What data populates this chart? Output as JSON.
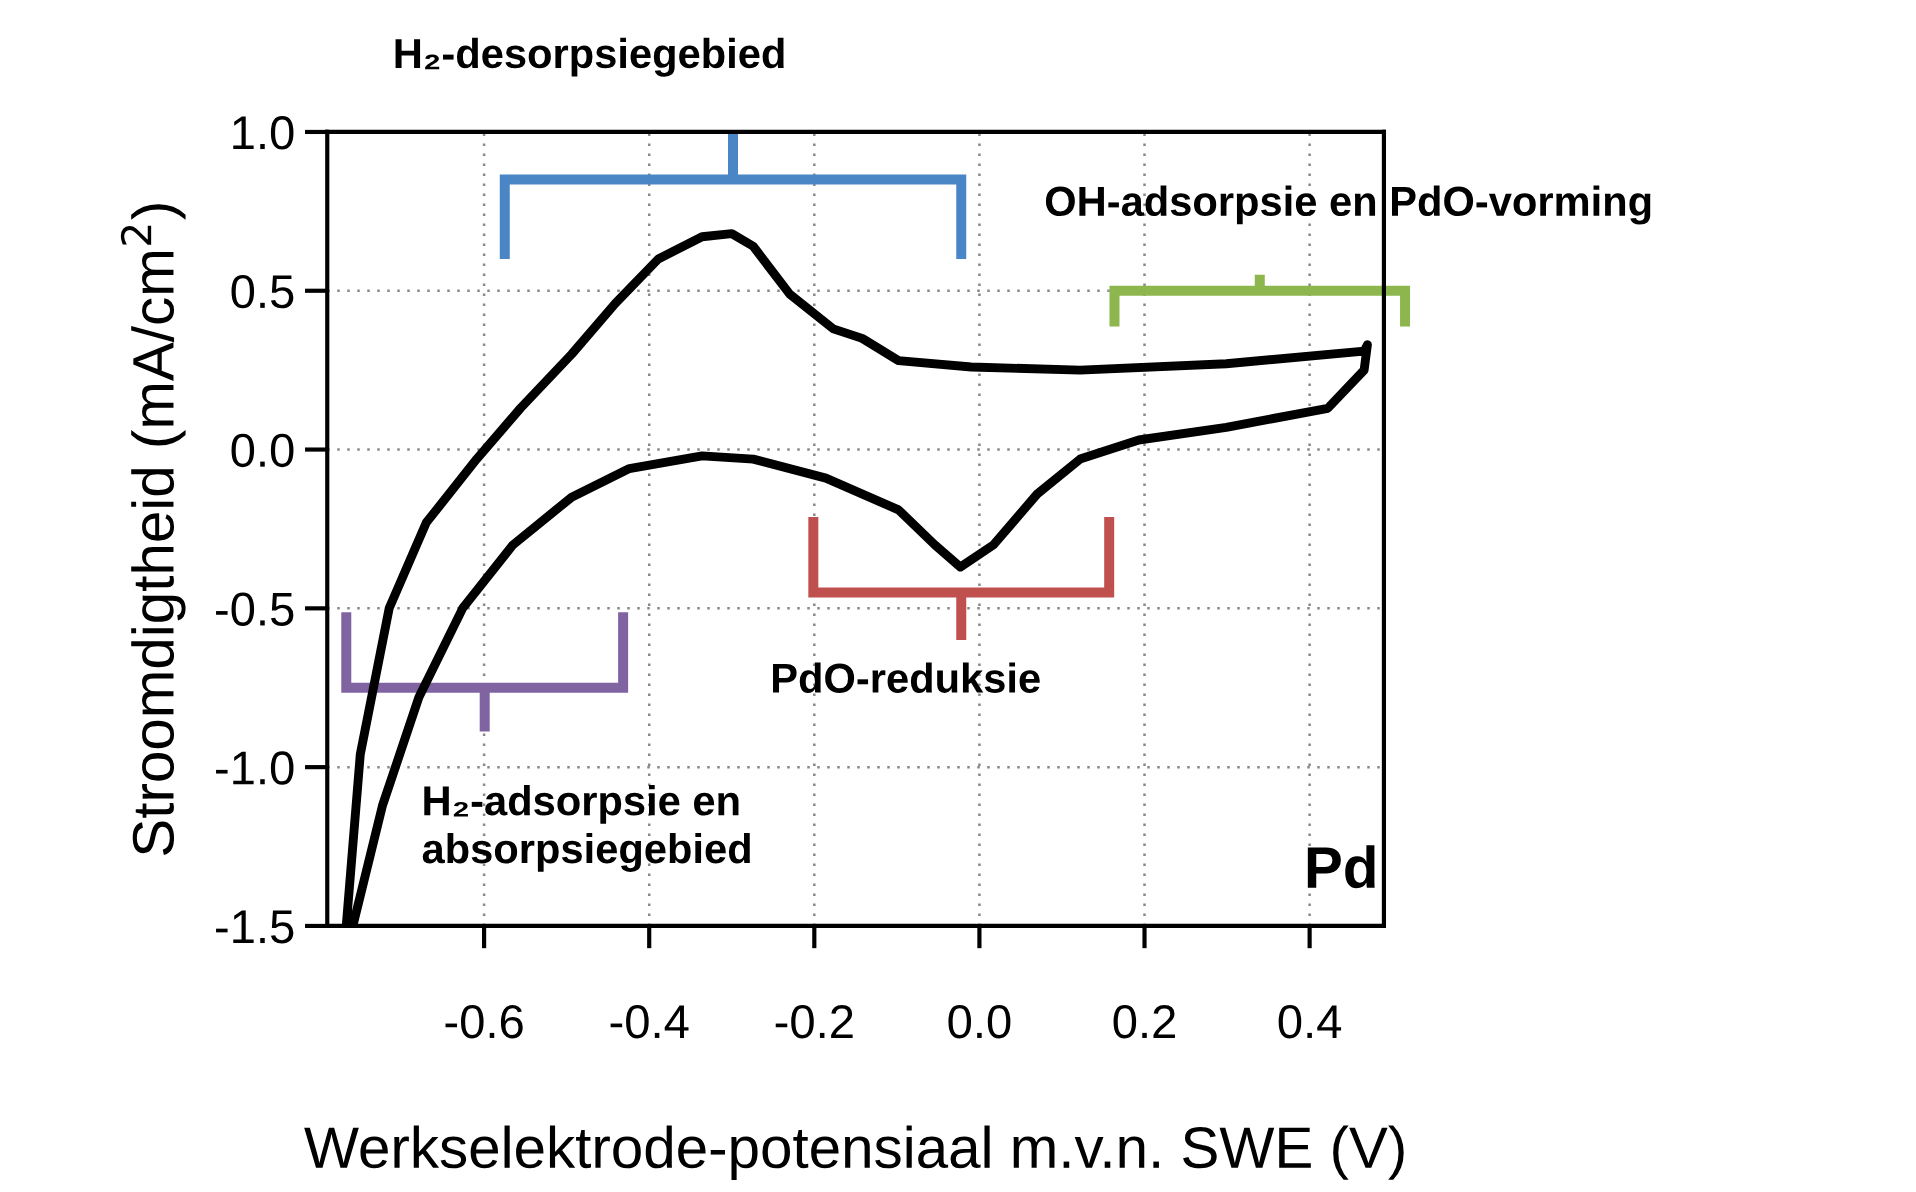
{
  "chart_data": {
    "type": "line",
    "xlabel": "Werkselektrode-potensiaal m.v.n. SWE (V)",
    "ylabel": "Stroomdigtheid (mA/cm$^{2}$)",
    "xlim": [
      -0.79,
      0.49
    ],
    "xticks": [
      {
        "value": -0.6,
        "label": "-0.6"
      },
      {
        "value": -0.4,
        "label": "-0.4"
      },
      {
        "value": -0.2,
        "label": "-0.2"
      },
      {
        "value": 0.0,
        "label": "0.0"
      },
      {
        "value": 0.2,
        "label": "0.2"
      },
      {
        "value": 0.4,
        "label": "0.4"
      }
    ],
    "ylim": [
      -1.5,
      1.0
    ],
    "yticks": [
      {
        "value": -1.5,
        "label": "-1.5"
      },
      {
        "value": -1.0,
        "label": "-1.0"
      },
      {
        "value": -0.5,
        "label": "-0.5"
      },
      {
        "value": 0.0,
        "label": "0.0"
      },
      {
        "value": 0.5,
        "label": "0.5"
      },
      {
        "value": 1.0,
        "label": "1.0"
      }
    ],
    "grid": true,
    "line_style": "solid",
    "series": [
      {
        "color": "#000000",
        "x": [
          -0.767,
          -0.75,
          -0.715,
          -0.67,
          -0.609,
          -0.556,
          -0.494,
          -0.441,
          -0.389,
          -0.336,
          -0.3,
          -0.274,
          -0.23,
          -0.177,
          -0.142,
          -0.098,
          -0.01,
          0.122,
          0.299,
          0.466,
          0.47,
          0.466,
          0.422,
          0.299,
          0.193,
          0.122,
          0.07,
          0.017,
          -0.023,
          -0.054,
          -0.098,
          -0.186,
          -0.274,
          -0.336,
          -0.424,
          -0.494,
          -0.565,
          -0.626,
          -0.679,
          -0.723,
          -0.759
        ],
        "values": [
          -1.5,
          -0.96,
          -0.5,
          -0.23,
          -0.03,
          0.13,
          0.3,
          0.46,
          0.6,
          0.67,
          0.68,
          0.64,
          0.49,
          0.38,
          0.35,
          0.28,
          0.26,
          0.25,
          0.27,
          0.31,
          0.33,
          0.25,
          0.13,
          0.07,
          0.03,
          -0.03,
          -0.14,
          -0.3,
          -0.37,
          -0.3,
          -0.19,
          -0.09,
          -0.03,
          -0.02,
          -0.06,
          -0.15,
          -0.3,
          -0.5,
          -0.78,
          -1.12,
          -1.5
        ]
      }
    ],
    "annotations": [
      "H₂-desorpsiegebied",
      "OH-adsorpsie en PdO-vorming",
      "PdO-reduksie",
      "H₂-adsorpsie en\nabsorpsiegebied",
      "Pd"
    ]
  }
}
